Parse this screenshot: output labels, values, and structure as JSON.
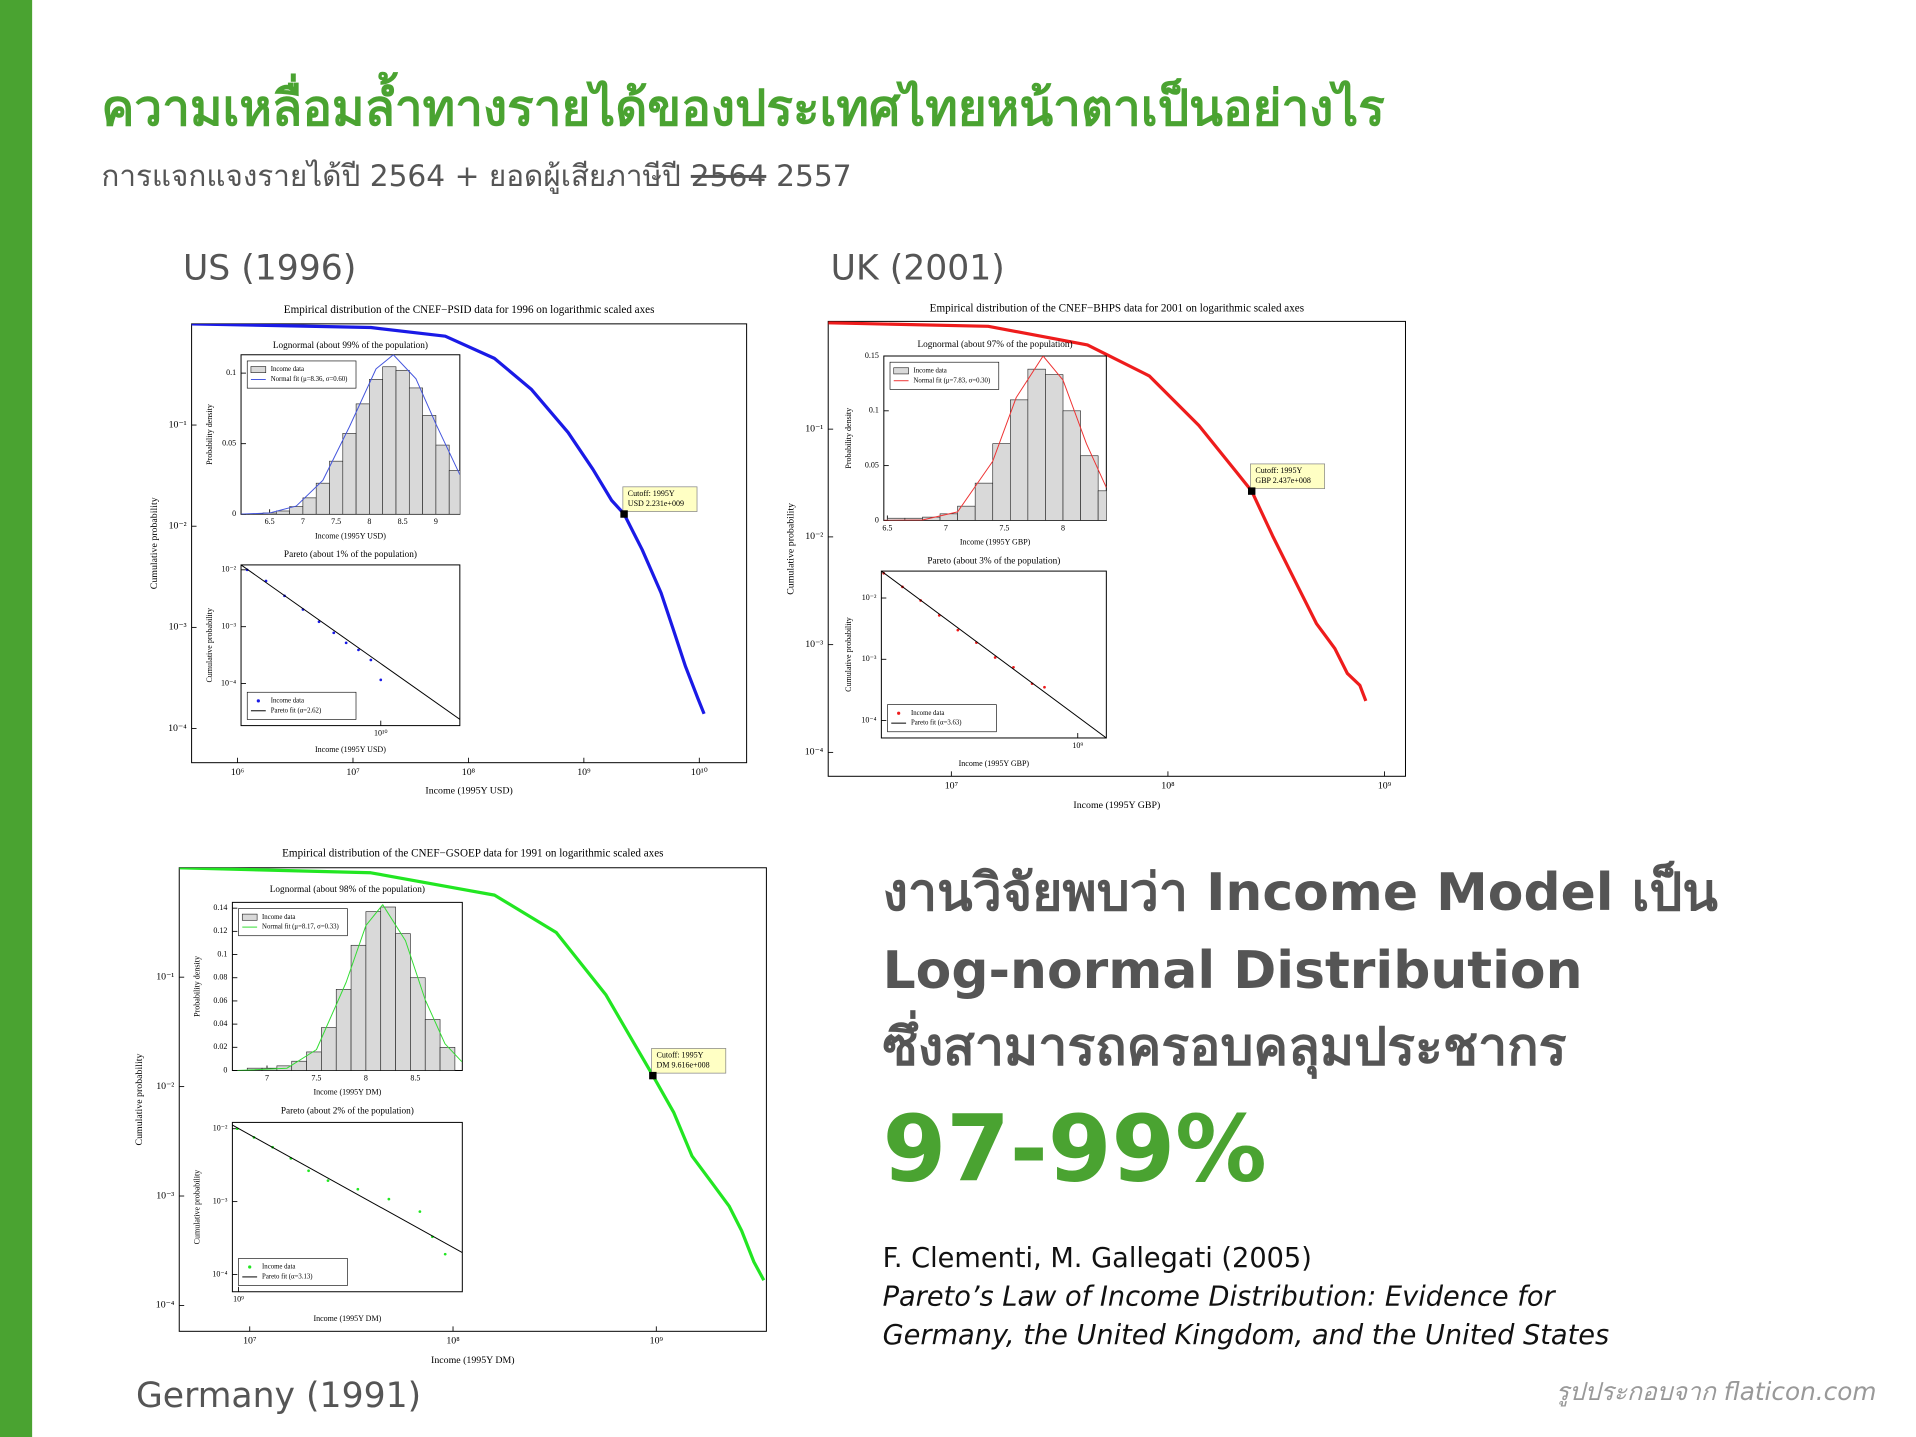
{
  "header": {
    "title": "ความเหลื่อมล้ำทางรายได้ของประเทศไทยหน้าตาเป็นอย่างไร",
    "subtitle": {
      "text": "การแจกแจงรายได้ปี 2564 + ยอดผู้เสียภาษีปี",
      "struck": "2564",
      "corrected": "2557"
    }
  },
  "chart_data": [
    {
      "type": "line",
      "panel_label": "US (1996)",
      "title": "Empirical distribution of the CNEF−PSID data for 1996 on logarithmic scaled axes",
      "xlabel": "Income (1995Y USD)",
      "ylabel": "Cumulative probability",
      "xscale": "log",
      "yscale": "log",
      "color": "#1a1ae6",
      "xlim": [
        400000,
        25700000000
      ],
      "ylim": [
        4.6e-05,
        1
      ],
      "xticks": [
        {
          "value": 1000000,
          "label": "10⁶"
        },
        {
          "value": 10000000,
          "label": "10⁷"
        },
        {
          "value": 100000000,
          "label": "10⁸"
        },
        {
          "value": 1000000000,
          "label": "10⁹"
        },
        {
          "value": 10000000000,
          "label": "10¹⁰"
        }
      ],
      "yticks": [
        {
          "value": 0.1,
          "label": "10⁻¹"
        },
        {
          "value": 0.01,
          "label": "10⁻²"
        },
        {
          "value": 0.001,
          "label": "10⁻³"
        },
        {
          "value": 0.0001,
          "label": "10⁻⁴"
        }
      ],
      "x": [
        400000,
        14300000,
        63000000,
        168000000,
        350000000,
        730000000,
        1200000000,
        1740000000,
        2231000000,
        3200000000,
        4660000000,
        5960000000,
        7600000000,
        9700000000,
        11000000000
      ],
      "values": [
        1,
        0.92,
        0.755,
        0.456,
        0.226,
        0.0845,
        0.0364,
        0.018,
        0.0132,
        0.00586,
        0.0022,
        0.00095,
        0.00041,
        0.0002,
        0.00014
      ],
      "annotation": {
        "text": [
          "Cutoff: 1995Y",
          "USD 2.231e+009"
        ],
        "x": 2231000000,
        "y": 0.0132
      },
      "insets": [
        {
          "type": "histogram",
          "title": "Lognormal (about 99% of the population)",
          "xlabel": "Income (1995Y USD)",
          "ylabel": "Probability density",
          "legend": "upper left",
          "xlim": [
            6.07,
            9.36
          ],
          "ylim": [
            0,
            0.113
          ],
          "xticks": [
            6.5,
            7,
            7.5,
            8,
            8.5,
            9
          ],
          "yticks": [
            0,
            0.05,
            0.1
          ],
          "series": [
            {
              "name": "Income data",
              "type": "histogram",
              "color": "#d9d9d9",
              "bins": [
                6.2,
                6.4,
                6.6,
                6.8,
                7,
                7.2,
                7.4,
                7.6,
                7.8,
                8,
                8.2,
                8.4,
                8.6,
                8.8,
                9,
                9.2,
                9.4
              ],
              "values": [
                0.0003,
                0.0009,
                0.0023,
                0.0054,
                0.0116,
                0.022,
                0.0376,
                0.0573,
                0.0782,
                0.0956,
                0.1045,
                0.102,
                0.0895,
                0.07,
                0.049,
                0.031
              ]
            },
            {
              "name": "Normal fit (μ=8.36, σ=0.60)",
              "type": "line",
              "color": "#4455dd",
              "x": [
                6.07,
                6.5,
                6.9,
                7.3,
                7.7,
                8.1,
                8.36,
                8.7,
                9,
                9.36
              ],
              "values": [
                0.0001,
                0.0009,
                0.0058,
                0.024,
                0.062,
                0.103,
                0.113,
                0.096,
                0.064,
                0.028
              ]
            }
          ]
        },
        {
          "type": "scatter",
          "title": "Pareto (about 1% of the population)",
          "xlabel": "Income (1995Y USD)",
          "ylabel": "Cumulative probability",
          "legend": "lower left",
          "xscale": "log",
          "yscale": "log",
          "xlim": [
            2160000000,
            23800000000
          ],
          "ylim": [
            1.82e-05,
            0.0122
          ],
          "xticks": [
            {
              "value": 10000000000,
              "label": "10¹⁰"
            }
          ],
          "yticks": [
            {
              "value": 0.01,
              "label": "10⁻²"
            },
            {
              "value": 0.001,
              "label": "10⁻³"
            },
            {
              "value": 0.0001,
              "label": "10⁻⁴"
            }
          ],
          "series": [
            {
              "name": "Income data",
              "type": "scatter",
              "color": "#1a1ae6",
              "x": [
                2310000000,
                2840000000,
                3480000000,
                4260000000,
                5080000000,
                5970000000,
                6840000000,
                7830000000,
                8970000000,
                10000000000
              ],
              "values": [
                0.01,
                0.00637,
                0.00349,
                0.00201,
                0.00122,
                0.00078,
                0.00052,
                0.00039,
                0.00026,
                0.000116
              ]
            },
            {
              "name": "Pareto fit (α=2.62)",
              "type": "line",
              "color": "#000000",
              "x": [
                2160000000,
                23800000000
              ],
              "values": [
                0.0122,
                2.34e-05
              ]
            }
          ]
        }
      ]
    },
    {
      "type": "line",
      "panel_label": "UK (2001)",
      "title": "Empirical distribution of the CNEF−BHPS data for 2001 on logarithmic scaled axes",
      "xlabel": "Income (1995Y GBP)",
      "ylabel": "Cumulative probability",
      "xscale": "log",
      "yscale": "log",
      "color": "#ee1c1c",
      "xlim": [
        2700000,
        1250000000
      ],
      "ylim": [
        6e-05,
        1
      ],
      "xticks": [
        {
          "value": 10000000,
          "label": "10⁷"
        },
        {
          "value": 100000000,
          "label": "10⁸"
        },
        {
          "value": 1000000000,
          "label": "10⁹"
        }
      ],
      "yticks": [
        {
          "value": 0.1,
          "label": "10⁻¹"
        },
        {
          "value": 0.01,
          "label": "10⁻²"
        },
        {
          "value": 0.001,
          "label": "10⁻³"
        },
        {
          "value": 0.0001,
          "label": "10⁻⁴"
        }
      ],
      "x": [
        2700000,
        14800000,
        42500000,
        82000000,
        139000000,
        206000000,
        243700000,
        306000000,
        398000000,
        485000000,
        590000000,
        674000000,
        769000000,
        820000000
      ],
      "values": [
        0.97,
        0.9,
        0.605,
        0.312,
        0.108,
        0.0406,
        0.0266,
        0.01,
        0.00347,
        0.00157,
        0.00092,
        0.00054,
        0.00042,
        0.0003
      ],
      "annotation": {
        "text": [
          "Cutoff: 1995Y",
          "GBP 2.437e+008"
        ],
        "x": 243700000,
        "y": 0.0266
      },
      "insets": [
        {
          "type": "histogram",
          "title": "Lognormal (about 97% of the population)",
          "xlabel": "Income (1995Y GBP)",
          "ylabel": "Probability density",
          "legend": "upper left",
          "xlim": [
            6.47,
            8.37
          ],
          "ylim": [
            0,
            0.15
          ],
          "xticks": [
            6.5,
            7,
            7.5,
            8
          ],
          "yticks": [
            0,
            0.05,
            0.1,
            0.15
          ],
          "series": [
            {
              "name": "Income data",
              "type": "histogram",
              "color": "#d9d9d9",
              "bins": [
                6.5,
                6.65,
                6.8,
                6.95,
                7.1,
                7.25,
                7.4,
                7.55,
                7.7,
                7.85,
                8,
                8.15,
                8.3,
                8.45
              ],
              "values": [
                0.002,
                0.002,
                0.003,
                0.006,
                0.013,
                0.034,
                0.07,
                0.11,
                0.138,
                0.133,
                0.1,
                0.059,
                0.027
              ]
            },
            {
              "name": "Normal fit (μ=7.83, σ=0.30)",
              "type": "line",
              "color": "#ee3333",
              "x": [
                6.47,
                6.8,
                7.1,
                7.4,
                7.6,
                7.83,
                8,
                8.2,
                8.37
              ],
              "values": [
                0,
                0.0004,
                0.0078,
                0.054,
                0.112,
                0.15,
                0.128,
                0.07,
                0.03
              ]
            }
          ]
        },
        {
          "type": "scatter",
          "title": "Pareto (about 3% of the population)",
          "xlabel": "Income (1995Y GBP)",
          "ylabel": "Cumulative probability",
          "legend": "lower left",
          "xscale": "log",
          "yscale": "log",
          "xlim": [
            222000000,
            1245000000
          ],
          "ylim": [
            5.2e-05,
            0.0275
          ],
          "xticks": [
            {
              "value": 1000000000,
              "label": "10⁹"
            }
          ],
          "yticks": [
            {
              "value": 0.01,
              "label": "10⁻²"
            },
            {
              "value": 0.001,
              "label": "10⁻³"
            },
            {
              "value": 0.0001,
              "label": "10⁻⁴"
            }
          ],
          "series": [
            {
              "name": "Income data",
              "type": "scatter",
              "color": "#ee1c1c",
              "x": [
                226000000,
                261000000,
                300000000,
                346000000,
                399000000,
                460000000,
                531000000,
                611000000,
                705000000,
                775000000
              ],
              "values": [
                0.0254,
                0.0152,
                0.0091,
                0.0052,
                0.00299,
                0.00187,
                0.00107,
                0.00074,
                0.0004,
                0.00035
              ]
            },
            {
              "name": "Pareto fit (α=3.63)",
              "type": "line",
              "color": "#000000",
              "x": [
                222000000,
                1245000000
              ],
              "values": [
                0.0275,
                5.2e-05
              ]
            }
          ]
        }
      ]
    },
    {
      "type": "line",
      "panel_label": "Germany (1991)",
      "title": "Empirical distribution of the CNEF−GSOEP data for 1991 on logarithmic scaled axes",
      "xlabel": "Income (1995Y DM)",
      "ylabel": "Cumulative probability",
      "xscale": "log",
      "yscale": "log",
      "color": "#22e622",
      "xlim": [
        4500000,
        3480000000
      ],
      "ylim": [
        5.8e-05,
        1
      ],
      "xticks": [
        {
          "value": 10000000,
          "label": "10⁷"
        },
        {
          "value": 100000000,
          "label": "10⁸"
        },
        {
          "value": 1000000000,
          "label": "10⁹"
        }
      ],
      "yticks": [
        {
          "value": 0.1,
          "label": "10⁻¹"
        },
        {
          "value": 0.01,
          "label": "10⁻²"
        },
        {
          "value": 0.001,
          "label": "10⁻³"
        },
        {
          "value": 0.0001,
          "label": "10⁻⁴"
        }
      ],
      "x": [
        4500000,
        39400000,
        160000000,
        322000000,
        564000000,
        961600000,
        1220000000,
        1500000000,
        1850000000,
        2280000000,
        2630000000,
        3020000000,
        3380000000
      ],
      "values": [
        1,
        0.9,
        0.562,
        0.256,
        0.0693,
        0.0126,
        0.00577,
        0.00231,
        0.00137,
        0.00081,
        0.00048,
        0.00025,
        0.00017
      ],
      "annotation": {
        "text": [
          "Cutoff: 1995Y",
          "DM 9.616e+008"
        ],
        "x": 961600000,
        "y": 0.0126
      },
      "insets": [
        {
          "type": "histogram",
          "title": "Lognormal (about 98% of the population)",
          "xlabel": "Income (1995Y DM)",
          "ylabel": "Probability density",
          "legend": "upper left",
          "xlim": [
            6.65,
            8.975
          ],
          "ylim": [
            0,
            0.145
          ],
          "xticks": [
            7,
            7.5,
            8,
            8.5
          ],
          "yticks": [
            0,
            0.02,
            0.04,
            0.06,
            0.08,
            0.1,
            0.12,
            0.14
          ],
          "series": [
            {
              "name": "Income data",
              "type": "histogram",
              "color": "#d9d9d9",
              "bins": [
                6.8,
                6.95,
                7.1,
                7.25,
                7.4,
                7.55,
                7.7,
                7.85,
                8,
                8.15,
                8.3,
                8.45,
                8.6,
                8.75,
                8.9
              ],
              "values": [
                0.002,
                0.002,
                0.004,
                0.008,
                0.016,
                0.037,
                0.07,
                0.108,
                0.137,
                0.141,
                0.118,
                0.08,
                0.044,
                0.02
              ]
            },
            {
              "name": "Normal fit (μ=8.17, σ=0.33)",
              "type": "line",
              "color": "#33dd33",
              "x": [
                6.7,
                7.2,
                7.5,
                7.8,
                8,
                8.17,
                8.4,
                8.6,
                8.8,
                8.97
              ],
              "values": [
                0,
                0.0019,
                0.018,
                0.076,
                0.125,
                0.143,
                0.112,
                0.061,
                0.023,
                0.0076
              ]
            }
          ]
        },
        {
          "type": "scatter",
          "title": "Pareto (about 2% of the population)",
          "xlabel": "Income (1995Y DM)",
          "ylabel": "Cumulative probability",
          "legend": "lower left",
          "xscale": "log",
          "yscale": "log",
          "xlim": [
            966000000,
            3500000000
          ],
          "ylim": [
            5.8e-05,
            0.0122
          ],
          "xticks": [
            {
              "value": 1000000000,
              "label": "10⁹"
            }
          ],
          "yticks": [
            {
              "value": 0.01,
              "label": "10⁻²"
            },
            {
              "value": 0.001,
              "label": "10⁻³"
            },
            {
              "value": 0.0001,
              "label": "10⁻⁴"
            }
          ],
          "series": [
            {
              "name": "Income data",
              "type": "scatter",
              "color": "#22e622",
              "x": [
                993000000,
                1090000000,
                1210000000,
                1340000000,
                1480000000,
                1650000000,
                1950000000,
                2320000000,
                2760000000,
                2960000000,
                3180000000
              ],
              "values": [
                0.01,
                0.0076,
                0.00557,
                0.00392,
                0.00265,
                0.00194,
                0.00148,
                0.00108,
                0.00073,
                0.00033,
                0.00019
              ]
            },
            {
              "name": "Pareto fit (α=3.13)",
              "type": "line",
              "color": "#000000",
              "x": [
                966000000,
                3500000000
              ],
              "values": [
                0.0112,
                0.0002
              ]
            }
          ]
        }
      ]
    }
  ],
  "findings": {
    "lines": [
      "งานวิจัยพบว่า Income Model เป็น",
      "Log-normal Distribution",
      "ซึ่งสามารถครอบคลุมประชากร"
    ],
    "highlight": "97-99%"
  },
  "citation": {
    "authors": "F. Clementi, M. Gallegati  (2005)",
    "title_lines": [
      "Pareto’s Law of Income Distribution: Evidence for",
      "Germany, the United Kingdom, and the United States"
    ]
  },
  "credit": "รูปประกอบจาก flaticon.com"
}
